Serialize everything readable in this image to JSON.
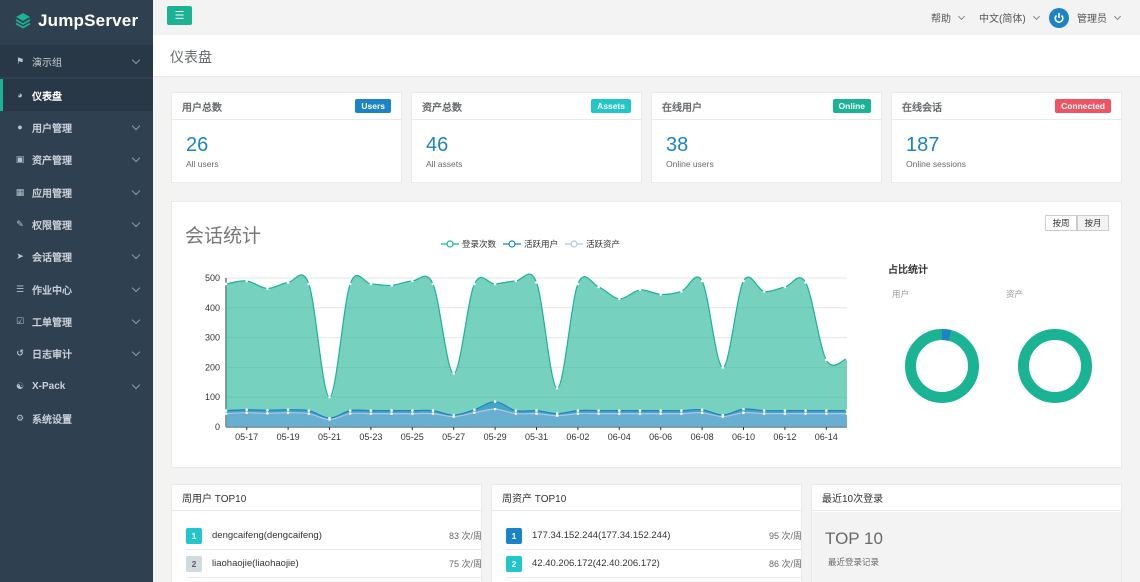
{
  "app": {
    "name": "JumpServer"
  },
  "sidebar": {
    "org": "演示组",
    "items": [
      {
        "label": "仪表盘",
        "icon": "dashboard-icon"
      },
      {
        "label": "用户管理",
        "icon": "users-icon"
      },
      {
        "label": "资产管理",
        "icon": "assets-icon"
      },
      {
        "label": "应用管理",
        "icon": "apps-icon"
      },
      {
        "label": "权限管理",
        "icon": "permission-icon"
      },
      {
        "label": "会话管理",
        "icon": "session-icon"
      },
      {
        "label": "作业中心",
        "icon": "jobs-icon"
      },
      {
        "label": "工单管理",
        "icon": "tickets-icon"
      },
      {
        "label": "日志审计",
        "icon": "audit-icon"
      },
      {
        "label": "X-Pack",
        "icon": "xpack-icon"
      },
      {
        "label": "系统设置",
        "icon": "settings-icon"
      }
    ]
  },
  "topbar": {
    "help": "帮助",
    "language": "中文(简体)",
    "user": "管理员"
  },
  "page": {
    "title": "仪表盘"
  },
  "stats": [
    {
      "title": "用户总数",
      "badge": "Users",
      "badge_color": "#1c84c6",
      "value": "26",
      "sub": "All users"
    },
    {
      "title": "资产总数",
      "badge": "Assets",
      "badge_color": "#23c6c8",
      "value": "46",
      "sub": "All assets"
    },
    {
      "title": "在线用户",
      "badge": "Online",
      "badge_color": "#1ab394",
      "value": "38",
      "sub": "Online users"
    },
    {
      "title": "在线会话",
      "badge": "Connected",
      "badge_color": "#ed5565",
      "value": "187",
      "sub": "Online sessions"
    }
  ],
  "session_panel": {
    "title": "会话统计",
    "btn_week": "按周",
    "btn_month": "按月",
    "ratio_title": "占比统计",
    "ratio_user_label": "用户",
    "ratio_asset_label": "资产"
  },
  "chart_data": {
    "type": "area",
    "x": [
      "05-16",
      "05-17",
      "05-18",
      "05-19",
      "05-20",
      "05-21",
      "05-22",
      "05-23",
      "05-24",
      "05-25",
      "05-26",
      "05-27",
      "05-28",
      "05-29",
      "05-30",
      "05-31",
      "06-01",
      "06-02",
      "06-03",
      "06-04",
      "06-05",
      "06-06",
      "06-07",
      "06-08",
      "06-09",
      "06-10",
      "06-11",
      "06-12",
      "06-13",
      "06-14",
      "06-15"
    ],
    "x_ticks": [
      "05-17",
      "05-19",
      "05-21",
      "05-23",
      "05-25",
      "05-27",
      "05-29",
      "05-31",
      "06-02",
      "06-04",
      "06-06",
      "06-08",
      "06-10",
      "06-12",
      "06-14"
    ],
    "y_ticks": [
      0,
      100,
      200,
      300,
      400,
      500
    ],
    "ylim": [
      0,
      500
    ],
    "series": [
      {
        "name": "登录次数",
        "color": "#1ab394",
        "values": [
          480,
          490,
          465,
          485,
          480,
          100,
          480,
          480,
          475,
          490,
          480,
          180,
          480,
          480,
          490,
          485,
          130,
          480,
          470,
          430,
          460,
          445,
          455,
          490,
          200,
          490,
          455,
          470,
          485,
          225,
          230
        ]
      },
      {
        "name": "活跃用户",
        "color": "#1c84c6",
        "values": [
          55,
          58,
          56,
          58,
          55,
          30,
          55,
          55,
          55,
          55,
          55,
          40,
          58,
          85,
          55,
          55,
          45,
          55,
          55,
          55,
          55,
          55,
          55,
          58,
          40,
          60,
          55,
          55,
          55,
          55,
          55
        ]
      },
      {
        "name": "活跃资产",
        "color": "#b0c4e8",
        "values": [
          45,
          48,
          46,
          48,
          45,
          25,
          45,
          45,
          45,
          45,
          45,
          35,
          48,
          60,
          45,
          45,
          38,
          45,
          45,
          45,
          45,
          45,
          45,
          48,
          35,
          48,
          45,
          45,
          45,
          45,
          45
        ]
      }
    ]
  },
  "ratio": {
    "user_share": 0.04,
    "asset_share": 0.0,
    "main_color": "#1ab394",
    "accent_color": "#1c84c6"
  },
  "top_users": {
    "title": "周用户 TOP10",
    "rows": [
      {
        "rank": "1",
        "name": "dengcaifeng(dengcaifeng)",
        "value": "83 次/周",
        "color": "#23c6c8"
      },
      {
        "rank": "2",
        "name": "liaohaojie(liaohaojie)",
        "value": "75 次/周",
        "color": "#d1dade"
      }
    ]
  },
  "top_assets": {
    "title": "周资产 TOP10",
    "rows": [
      {
        "rank": "1",
        "name": "177.34.152.244(177.34.152.244)",
        "value": "95 次/周",
        "color": "#1c84c6"
      },
      {
        "rank": "2",
        "name": "42.40.206.172(42.40.206.172)",
        "value": "86 次/周",
        "color": "#23c6c8"
      }
    ]
  },
  "recent_logins": {
    "title": "最近10次登录",
    "big": "TOP 10",
    "sub": "最近登录记录"
  }
}
